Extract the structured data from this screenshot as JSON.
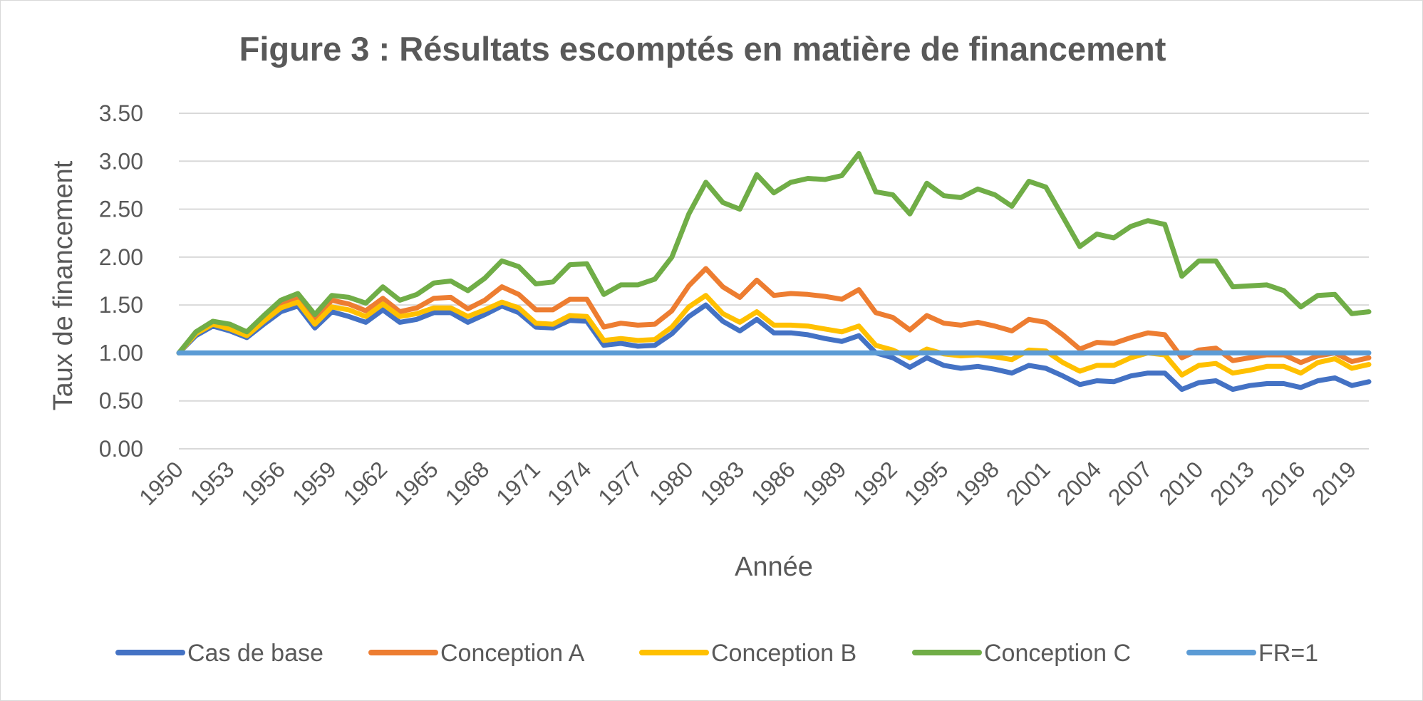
{
  "chart_data": {
    "type": "line",
    "title": "Figure 3 : Résultats escomptés en matière de financement",
    "xlabel": "Année",
    "ylabel": "Taux de financement",
    "ylim": [
      0,
      3.5
    ],
    "y_ticks": [
      "0.00",
      "0.50",
      "1.00",
      "1.50",
      "2.00",
      "2.50",
      "3.00",
      "3.50"
    ],
    "x_tick_labels": [
      "1950",
      "1953",
      "1956",
      "1959",
      "1962",
      "1965",
      "1968",
      "1971",
      "1974",
      "1977",
      "1980",
      "1983",
      "1986",
      "1989",
      "1992",
      "1995",
      "1998",
      "2001",
      "2004",
      "2007",
      "2010",
      "2013",
      "2016",
      "2019"
    ],
    "x": [
      1950,
      1951,
      1952,
      1953,
      1954,
      1955,
      1956,
      1957,
      1958,
      1959,
      1960,
      1961,
      1962,
      1963,
      1964,
      1965,
      1966,
      1967,
      1968,
      1969,
      1970,
      1971,
      1972,
      1973,
      1974,
      1975,
      1976,
      1977,
      1978,
      1979,
      1980,
      1981,
      1982,
      1983,
      1984,
      1985,
      1986,
      1987,
      1988,
      1989,
      1990,
      1991,
      1992,
      1993,
      1994,
      1995,
      1996,
      1997,
      1998,
      1999,
      2000,
      2001,
      2002,
      2003,
      2004,
      2005,
      2006,
      2007,
      2008,
      2009,
      2010,
      2011,
      2012,
      2013,
      2014,
      2015,
      2016,
      2017,
      2018,
      2019,
      2020
    ],
    "grid": true,
    "legend_position": "bottom",
    "series": [
      {
        "name": "Cas de base",
        "color": "#4472c4",
        "values": [
          1.0,
          1.18,
          1.28,
          1.23,
          1.16,
          1.3,
          1.43,
          1.49,
          1.26,
          1.43,
          1.38,
          1.32,
          1.45,
          1.32,
          1.35,
          1.42,
          1.42,
          1.32,
          1.4,
          1.49,
          1.42,
          1.27,
          1.26,
          1.34,
          1.33,
          1.08,
          1.1,
          1.07,
          1.08,
          1.2,
          1.38,
          1.5,
          1.33,
          1.23,
          1.35,
          1.21,
          1.21,
          1.19,
          1.15,
          1.12,
          1.18,
          1.0,
          0.95,
          0.85,
          0.95,
          0.87,
          0.84,
          0.86,
          0.83,
          0.79,
          0.87,
          0.84,
          0.76,
          0.67,
          0.71,
          0.7,
          0.76,
          0.79,
          0.79,
          0.62,
          0.69,
          0.71,
          0.62,
          0.66,
          0.68,
          0.68,
          0.64,
          0.71,
          0.74,
          0.66,
          0.7
        ]
      },
      {
        "name": "Conception A",
        "color": "#ed7d31",
        "values": [
          1.0,
          1.2,
          1.32,
          1.28,
          1.2,
          1.35,
          1.5,
          1.57,
          1.35,
          1.55,
          1.51,
          1.44,
          1.57,
          1.43,
          1.47,
          1.57,
          1.58,
          1.46,
          1.55,
          1.69,
          1.61,
          1.45,
          1.45,
          1.56,
          1.56,
          1.27,
          1.31,
          1.29,
          1.3,
          1.44,
          1.7,
          1.88,
          1.69,
          1.58,
          1.76,
          1.6,
          1.62,
          1.61,
          1.59,
          1.56,
          1.66,
          1.42,
          1.37,
          1.24,
          1.39,
          1.31,
          1.29,
          1.32,
          1.28,
          1.23,
          1.35,
          1.32,
          1.19,
          1.04,
          1.11,
          1.1,
          1.16,
          1.21,
          1.19,
          0.95,
          1.03,
          1.05,
          0.92,
          0.95,
          0.98,
          0.98,
          0.9,
          0.97,
          1.0,
          0.91,
          0.95
        ]
      },
      {
        "name": "Conception B",
        "color": "#ffc000",
        "values": [
          1.0,
          1.2,
          1.3,
          1.25,
          1.18,
          1.33,
          1.47,
          1.53,
          1.3,
          1.48,
          1.45,
          1.38,
          1.51,
          1.38,
          1.41,
          1.47,
          1.47,
          1.38,
          1.45,
          1.53,
          1.47,
          1.31,
          1.3,
          1.39,
          1.38,
          1.13,
          1.15,
          1.13,
          1.14,
          1.27,
          1.48,
          1.6,
          1.41,
          1.32,
          1.43,
          1.29,
          1.29,
          1.28,
          1.25,
          1.22,
          1.28,
          1.08,
          1.03,
          0.95,
          1.04,
          0.99,
          0.97,
          0.98,
          0.96,
          0.93,
          1.03,
          1.02,
          0.9,
          0.81,
          0.87,
          0.87,
          0.95,
          1.0,
          0.98,
          0.77,
          0.87,
          0.89,
          0.79,
          0.82,
          0.86,
          0.86,
          0.79,
          0.9,
          0.94,
          0.84,
          0.88
        ]
      },
      {
        "name": "Conception C",
        "color": "#70ad47",
        "values": [
          1.0,
          1.22,
          1.33,
          1.3,
          1.22,
          1.39,
          1.55,
          1.62,
          1.4,
          1.6,
          1.58,
          1.52,
          1.69,
          1.55,
          1.61,
          1.73,
          1.75,
          1.65,
          1.78,
          1.96,
          1.9,
          1.72,
          1.74,
          1.92,
          1.93,
          1.61,
          1.71,
          1.71,
          1.77,
          2.0,
          2.45,
          2.78,
          2.57,
          2.5,
          2.86,
          2.67,
          2.78,
          2.82,
          2.81,
          2.85,
          3.08,
          2.68,
          2.65,
          2.45,
          2.77,
          2.64,
          2.62,
          2.71,
          2.65,
          2.53,
          2.79,
          2.73,
          2.42,
          2.11,
          2.24,
          2.2,
          2.32,
          2.38,
          2.34,
          1.8,
          1.96,
          1.96,
          1.69,
          1.7,
          1.71,
          1.65,
          1.48,
          1.6,
          1.61,
          1.41,
          1.43
        ]
      },
      {
        "name": "FR=1",
        "color": "#5b9bd5",
        "values": [
          1,
          1,
          1,
          1,
          1,
          1,
          1,
          1,
          1,
          1,
          1,
          1,
          1,
          1,
          1,
          1,
          1,
          1,
          1,
          1,
          1,
          1,
          1,
          1,
          1,
          1,
          1,
          1,
          1,
          1,
          1,
          1,
          1,
          1,
          1,
          1,
          1,
          1,
          1,
          1,
          1,
          1,
          1,
          1,
          1,
          1,
          1,
          1,
          1,
          1,
          1,
          1,
          1,
          1,
          1,
          1,
          1,
          1,
          1,
          1,
          1,
          1,
          1,
          1,
          1,
          1,
          1,
          1,
          1,
          1,
          1
        ]
      }
    ]
  }
}
